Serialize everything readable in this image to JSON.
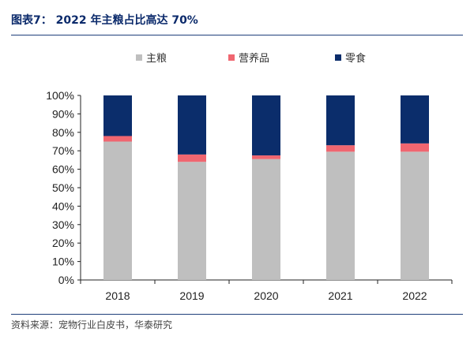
{
  "header": {
    "title": "图表7： 2022 年主粮占比高达 70%"
  },
  "footer": {
    "source": "资料来源：宠物行业白皮书，华泰研究"
  },
  "colors": {
    "staple": "#bfbfbf",
    "nutrition": "#f06670",
    "snack": "#0b2d6b",
    "axis": "#222222",
    "rule": "#1f3f7a"
  },
  "chart_data": {
    "type": "bar",
    "stacked": true,
    "categories": [
      "2018",
      "2019",
      "2020",
      "2021",
      "2022"
    ],
    "series": [
      {
        "name": "主粮",
        "color": "#bfbfbf",
        "values": [
          75,
          64,
          65.5,
          69.5,
          69.5
        ]
      },
      {
        "name": "营养品",
        "color": "#f06670",
        "values": [
          3,
          4,
          2,
          3.5,
          4.5
        ]
      },
      {
        "name": "零食",
        "color": "#0b2d6b",
        "values": [
          22,
          32,
          32.5,
          27,
          26
        ]
      }
    ],
    "ylim": [
      0,
      100
    ],
    "yticks": [
      "0%",
      "10%",
      "20%",
      "30%",
      "40%",
      "50%",
      "60%",
      "70%",
      "80%",
      "90%",
      "100%"
    ],
    "legend_position": "top",
    "grid": false
  }
}
